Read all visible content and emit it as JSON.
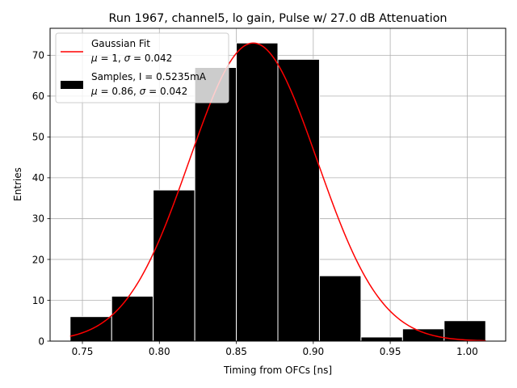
{
  "chart_data": {
    "type": "bar",
    "title": "Run 1967, channel5, lo gain, Pulse w/ 27.0 dB Attenuation",
    "xlabel": "Timing from OFCs [ns]",
    "ylabel": "Entries",
    "xlim": [
      0.729,
      1.025
    ],
    "ylim": [
      0,
      76.6
    ],
    "xticks": [
      0.75,
      0.8,
      0.85,
      0.9,
      0.95,
      1.0
    ],
    "xtick_labels": [
      "0.75",
      "0.80",
      "0.85",
      "0.90",
      "0.95",
      "1.00"
    ],
    "yticks": [
      0,
      10,
      20,
      30,
      40,
      50,
      60,
      70
    ],
    "ytick_labels": [
      "0",
      "10",
      "20",
      "30",
      "40",
      "50",
      "60",
      "70"
    ],
    "grid": true,
    "legend_position": "top-left",
    "colors": {
      "bars": "#000000",
      "bar_edge": "#ffffff",
      "fit": "#ff0000",
      "grid": "#b0b0b0"
    },
    "bins": [
      {
        "left": 0.742,
        "right": 0.769,
        "count": 6
      },
      {
        "left": 0.769,
        "right": 0.796,
        "count": 11
      },
      {
        "left": 0.796,
        "right": 0.823,
        "count": 37
      },
      {
        "left": 0.823,
        "right": 0.85,
        "count": 67
      },
      {
        "left": 0.85,
        "right": 0.877,
        "count": 73
      },
      {
        "left": 0.877,
        "right": 0.904,
        "count": 69
      },
      {
        "left": 0.904,
        "right": 0.931,
        "count": 16
      },
      {
        "left": 0.931,
        "right": 0.958,
        "count": 1
      },
      {
        "left": 0.958,
        "right": 0.985,
        "count": 3
      },
      {
        "left": 0.985,
        "right": 1.012,
        "count": 5
      }
    ],
    "fit_curve": {
      "mean": 0.861,
      "sigma": 0.0415,
      "amplitude": 73,
      "x_range": [
        0.742,
        1.012
      ]
    },
    "legend": [
      {
        "kind": "line",
        "line1": "Gaussian Fit",
        "line2_parts": [
          [
            "μ",
            " = 1, "
          ],
          [
            "σ",
            " = 0.042"
          ]
        ]
      },
      {
        "kind": "bar",
        "line1": "Samples, I = 0.5235mA",
        "line2_parts": [
          [
            "μ",
            " = 0.86, "
          ],
          [
            "σ",
            " = 0.042"
          ]
        ]
      }
    ]
  }
}
